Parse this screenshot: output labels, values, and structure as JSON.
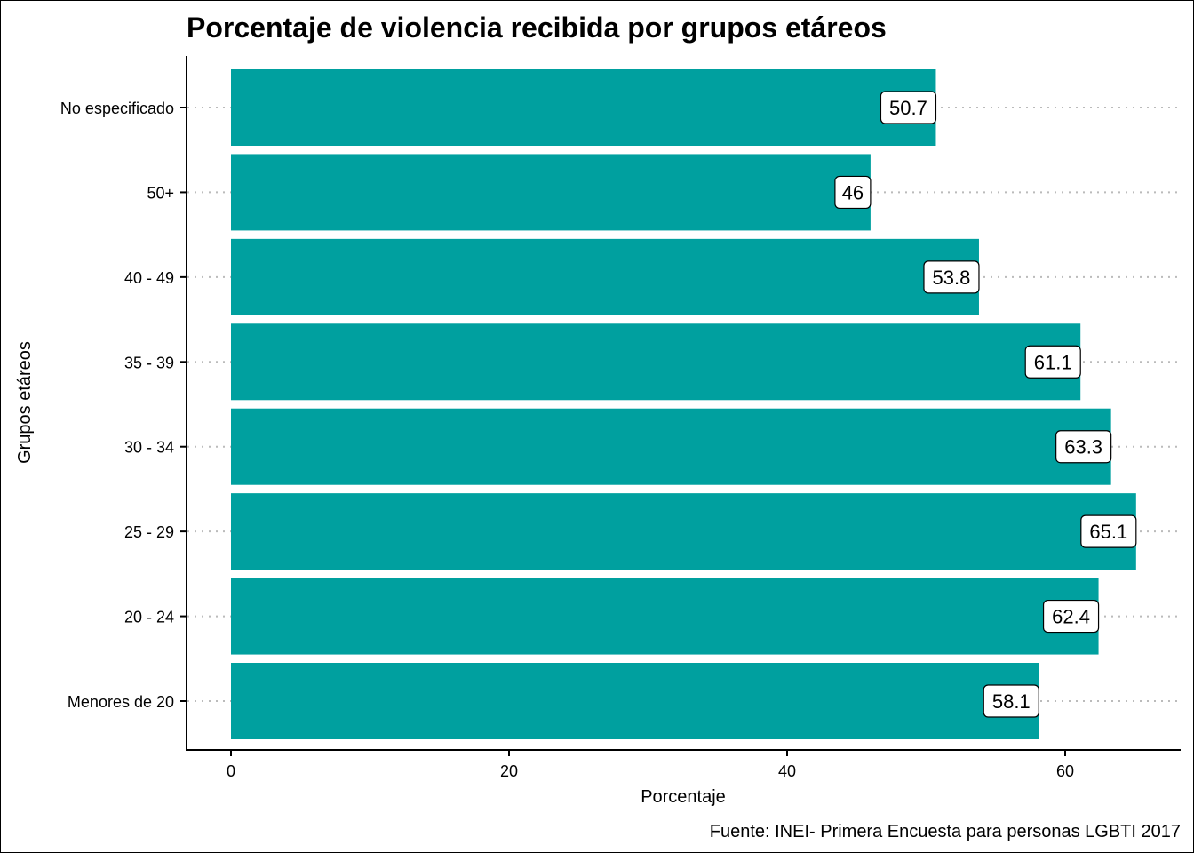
{
  "chart_data": {
    "type": "bar",
    "orientation": "horizontal",
    "title": "Porcentaje de violencia recibida por grupos etáreos",
    "xlabel": "Porcentaje",
    "ylabel": "Grupos etáreos",
    "caption": "Fuente: INEI- Primera Encuesta para personas LGBTI 2017",
    "categories": [
      "Menores de 20",
      "20 - 24",
      "25 - 29",
      "30 - 34",
      "35 - 39",
      "40 - 49",
      "50+",
      "No especificado"
    ],
    "values": [
      58.1,
      62.4,
      65.1,
      63.3,
      61.1,
      53.8,
      46,
      50.7
    ],
    "data_labels": [
      "58.1",
      "62.4",
      "65.1",
      "63.3",
      "61.1",
      "53.8",
      "46",
      "50.7"
    ],
    "xticks": [
      0,
      20,
      40,
      60
    ],
    "xtick_labels": [
      "0",
      "20",
      "40",
      "60"
    ],
    "xlim": [
      -3.2,
      68.3
    ],
    "grid": "horizontal dotted",
    "bar_color": "#00A09F"
  }
}
